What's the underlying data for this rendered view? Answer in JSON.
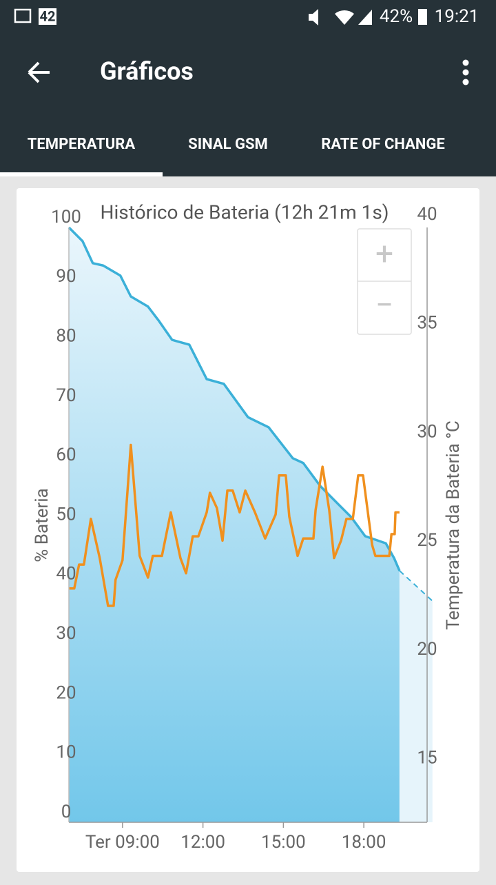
{
  "status_bar": {
    "notification_count": "42",
    "battery": "42%",
    "time": "19:21"
  },
  "toolbar": {
    "title": "Gráficos"
  },
  "tabs": [
    "TEMPERATURA",
    "SINAL GSM",
    "RATE OF CHANGE"
  ],
  "zoom": [
    "+",
    "−"
  ],
  "chart_data": {
    "type": "line",
    "title": "Histórico de Bateria (12h 21m 1s)",
    "y_label": "% Bateria",
    "y2_label": "Temperatura da Bateria °C",
    "xlim": [
      7,
      20.36
    ],
    "xticks": [
      {
        "value": 9,
        "label": "Ter 09:00"
      },
      {
        "value": 12,
        "label": "12:00"
      },
      {
        "value": 15,
        "label": "15:00"
      },
      {
        "value": 18,
        "label": "18:00"
      }
    ],
    "ylim": [
      0,
      100
    ],
    "yticks": [
      0,
      10,
      20,
      30,
      40,
      50,
      60,
      70,
      80,
      90,
      100
    ],
    "y2lim": [
      12.65,
      40
    ],
    "y2ticks": [
      15,
      20,
      25,
      30,
      35,
      40
    ],
    "series": [
      {
        "color": "#3bb0d8",
        "fill": true,
        "x": [
          7.0,
          7.51,
          7.89,
          8.28,
          8.92,
          9.31,
          9.95,
          10.34,
          10.85,
          11.49,
          12.14,
          12.78,
          13.68,
          14.45,
          15.35,
          15.74,
          16.38,
          17.02,
          17.53,
          18.05,
          18.82,
          19.13,
          19.33
        ],
        "values": [
          100,
          97.7,
          94,
          93.6,
          91.9,
          88.4,
          86.7,
          84.4,
          81.1,
          80.3,
          74.5,
          73.7,
          68.1,
          66.4,
          61.2,
          60.4,
          56.5,
          53.6,
          51.3,
          48.1,
          46.9,
          44.4,
          42.3
        ]
      },
      {
        "color": "#3bb0d8",
        "dashed": true,
        "x": [
          19.33,
          20.56
        ],
        "values": [
          42.3,
          37.2
        ]
      },
      {
        "color": "#f0901e",
        "axis": "y2",
        "x": [
          7.0,
          7.2,
          7.38,
          7.56,
          7.82,
          8.15,
          8.46,
          8.67,
          8.74,
          9.0,
          9.31,
          9.64,
          9.95,
          10.13,
          10.47,
          10.8,
          11.16,
          11.37,
          11.62,
          11.83,
          12.14,
          12.26,
          12.52,
          12.73,
          12.91,
          13.11,
          13.37,
          13.58,
          13.94,
          14.32,
          14.71,
          14.84,
          15.09,
          15.22,
          15.53,
          15.74,
          16.12,
          16.2,
          16.46,
          16.71,
          16.89,
          17.15,
          17.35,
          17.59,
          17.79,
          17.97,
          18.31,
          18.43,
          18.95,
          19.03,
          19.15,
          19.18,
          19.33
        ],
        "values": [
          23.4,
          23.4,
          24.5,
          24.5,
          26.6,
          24.8,
          22.6,
          22.6,
          23.8,
          24.7,
          30.0,
          24.9,
          23.9,
          24.9,
          24.9,
          26.9,
          24.8,
          24.1,
          25.8,
          25.8,
          26.9,
          27.8,
          27.1,
          25.6,
          27.9,
          27.9,
          26.9,
          27.9,
          26.9,
          25.7,
          26.8,
          28.6,
          28.6,
          26.7,
          24.9,
          25.7,
          25.7,
          27.0,
          29.0,
          27.0,
          24.8,
          25.6,
          26.6,
          26.6,
          28.6,
          28.6,
          25.4,
          24.9,
          24.9,
          25.9,
          25.9,
          26.9,
          26.9
        ]
      }
    ]
  }
}
